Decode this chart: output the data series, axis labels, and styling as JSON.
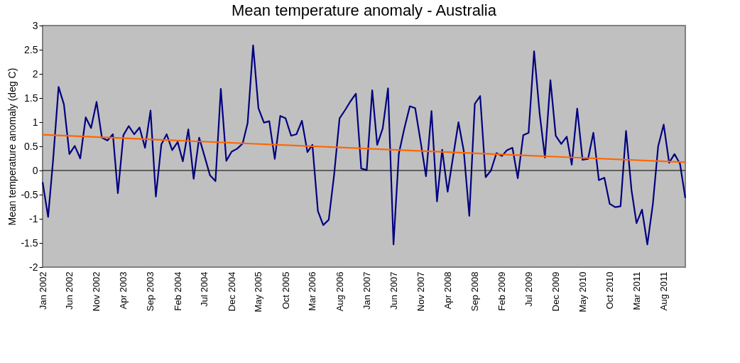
{
  "chart_data": {
    "type": "line",
    "title": "Mean temperature anomaly - Australia",
    "ylabel": "Mean temperature anomaly (deg C)",
    "x": [
      "2002-01",
      "2002-02",
      "2002-03",
      "2002-04",
      "2002-05",
      "2002-06",
      "2002-07",
      "2002-08",
      "2002-09",
      "2002-10",
      "2002-11",
      "2002-12",
      "2003-01",
      "2003-02",
      "2003-03",
      "2003-04",
      "2003-05",
      "2003-06",
      "2003-07",
      "2003-08",
      "2003-09",
      "2003-10",
      "2003-11",
      "2003-12",
      "2004-01",
      "2004-02",
      "2004-03",
      "2004-04",
      "2004-05",
      "2004-06",
      "2004-07",
      "2004-08",
      "2004-09",
      "2004-10",
      "2004-11",
      "2004-12",
      "2005-01",
      "2005-02",
      "2005-03",
      "2005-04",
      "2005-05",
      "2005-06",
      "2005-07",
      "2005-08",
      "2005-09",
      "2005-10",
      "2005-11",
      "2005-12",
      "2006-01",
      "2006-02",
      "2006-03",
      "2006-04",
      "2006-05",
      "2006-06",
      "2006-07",
      "2006-08",
      "2006-09",
      "2006-10",
      "2006-11",
      "2006-12",
      "2007-01",
      "2007-02",
      "2007-03",
      "2007-04",
      "2007-05",
      "2007-06",
      "2007-07",
      "2007-08",
      "2007-09",
      "2007-10",
      "2007-11",
      "2007-12",
      "2008-01",
      "2008-02",
      "2008-03",
      "2008-04",
      "2008-05",
      "2008-06",
      "2008-07",
      "2008-08",
      "2008-09",
      "2008-10",
      "2008-11",
      "2008-12",
      "2009-01",
      "2009-02",
      "2009-03",
      "2009-04",
      "2009-05",
      "2009-06",
      "2009-07",
      "2009-08",
      "2009-09",
      "2009-10",
      "2009-11",
      "2009-12",
      "2010-01",
      "2010-02",
      "2010-03",
      "2010-04",
      "2010-05",
      "2010-06",
      "2010-07",
      "2010-08",
      "2010-09",
      "2010-10",
      "2010-11",
      "2010-12",
      "2011-01",
      "2011-02",
      "2011-03",
      "2011-04",
      "2011-05",
      "2011-06",
      "2011-07",
      "2011-08",
      "2011-09",
      "2011-10",
      "2011-11",
      "2011-12"
    ],
    "series": [
      {
        "color": "#000080",
        "values": [
          -0.24,
          -0.96,
          0.21,
          1.73,
          1.37,
          0.34,
          0.51,
          0.25,
          1.1,
          0.88,
          1.42,
          0.68,
          0.62,
          0.75,
          -0.47,
          0.73,
          0.92,
          0.75,
          0.89,
          0.47,
          1.24,
          -0.54,
          0.54,
          0.75,
          0.42,
          0.59,
          0.19,
          0.85,
          -0.17,
          0.68,
          0.3,
          -0.1,
          -0.22,
          1.69,
          0.2,
          0.39,
          0.45,
          0.56,
          0.98,
          2.59,
          1.29,
          0.99,
          1.02,
          0.24,
          1.13,
          1.08,
          0.72,
          0.75,
          1.03,
          0.38,
          0.53,
          -0.84,
          -1.13,
          -1.02,
          -0.1,
          1.08,
          1.25,
          1.43,
          1.59,
          0.04,
          0.01,
          1.66,
          0.53,
          0.87,
          1.7,
          -1.53,
          0.35,
          0.87,
          1.33,
          1.29,
          0.59,
          -0.12,
          1.23,
          -0.64,
          0.43,
          -0.44,
          0.27,
          1.0,
          0.4,
          -0.94,
          1.38,
          1.54,
          -0.14,
          0.0,
          0.36,
          0.3,
          0.42,
          0.47,
          -0.16,
          0.73,
          0.78,
          2.47,
          1.19,
          0.27,
          1.87,
          0.72,
          0.55,
          0.7,
          0.12,
          1.28,
          0.22,
          0.24,
          0.78,
          -0.2,
          -0.15,
          -0.69,
          -0.76,
          -0.74,
          0.82,
          -0.41,
          -1.09,
          -0.81,
          -1.53,
          -0.7,
          0.5,
          0.95,
          0.16,
          0.34,
          0.14,
          -0.57
        ]
      },
      {
        "type": "line",
        "color": "#ff6600",
        "x": [
          "2002-01",
          "2011-12"
        ],
        "values": [
          0.74,
          0.17
        ]
      }
    ],
    "xlim": [
      "2002-01",
      "2011-12"
    ],
    "xticks": [
      {
        "value": "2002-01",
        "label": "Jan 2002"
      },
      {
        "value": "2002-06",
        "label": "Jun 2002"
      },
      {
        "value": "2002-11",
        "label": "Nov 2002"
      },
      {
        "value": "2003-04",
        "label": "Apr 2003"
      },
      {
        "value": "2003-09",
        "label": "Sep 2003"
      },
      {
        "value": "2004-02",
        "label": "Feb 2004"
      },
      {
        "value": "2004-07",
        "label": "Jul 2004"
      },
      {
        "value": "2004-12",
        "label": "Dec 2004"
      },
      {
        "value": "2005-05",
        "label": "May 2005"
      },
      {
        "value": "2005-10",
        "label": "Oct 2005"
      },
      {
        "value": "2006-03",
        "label": "Mar 2006"
      },
      {
        "value": "2006-08",
        "label": "Aug 2006"
      },
      {
        "value": "2007-01",
        "label": "Jan 2007"
      },
      {
        "value": "2007-06",
        "label": "Jun 2007"
      },
      {
        "value": "2007-11",
        "label": "Nov 2007"
      },
      {
        "value": "2008-04",
        "label": "Apr 2008"
      },
      {
        "value": "2008-09",
        "label": "Sep 2008"
      },
      {
        "value": "2009-02",
        "label": "Feb 2009"
      },
      {
        "value": "2009-07",
        "label": "Jul 2009"
      },
      {
        "value": "2009-12",
        "label": "Dec 2009"
      },
      {
        "value": "2010-05",
        "label": "May 2010"
      },
      {
        "value": "2010-10",
        "label": "Oct 2010"
      },
      {
        "value": "2011-03",
        "label": "Mar 2011"
      },
      {
        "value": "2011-08",
        "label": "Aug 2011"
      }
    ],
    "ylim": [
      -2,
      3
    ],
    "yticks": [
      -2,
      -1.5,
      -1,
      -0.5,
      0,
      0.5,
      1,
      1.5,
      2,
      2.5,
      3
    ],
    "ref_lines": [
      {
        "axis": "y",
        "value": 0,
        "color": "#000000"
      }
    ],
    "grid": false,
    "marker": "none",
    "line_style": "solid"
  }
}
